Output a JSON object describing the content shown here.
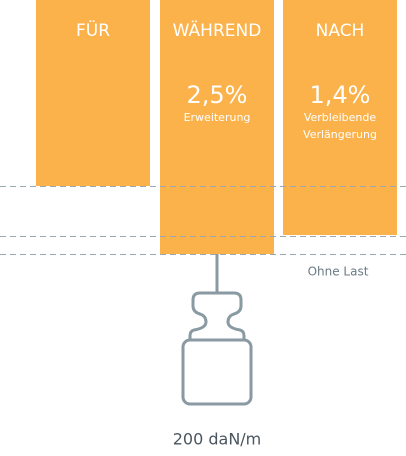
{
  "columns": [
    {
      "heading": "FÜR"
    },
    {
      "heading": "WÄHREND",
      "value": "2,5%",
      "caption": "Erweiterung"
    },
    {
      "heading": "NACH",
      "value": "1,4%",
      "caption_lines": [
        "Verbleibende",
        "Verlängerung"
      ]
    }
  ],
  "labels": {
    "no_load": "Ohne Last",
    "load": "200 daN/m"
  }
}
